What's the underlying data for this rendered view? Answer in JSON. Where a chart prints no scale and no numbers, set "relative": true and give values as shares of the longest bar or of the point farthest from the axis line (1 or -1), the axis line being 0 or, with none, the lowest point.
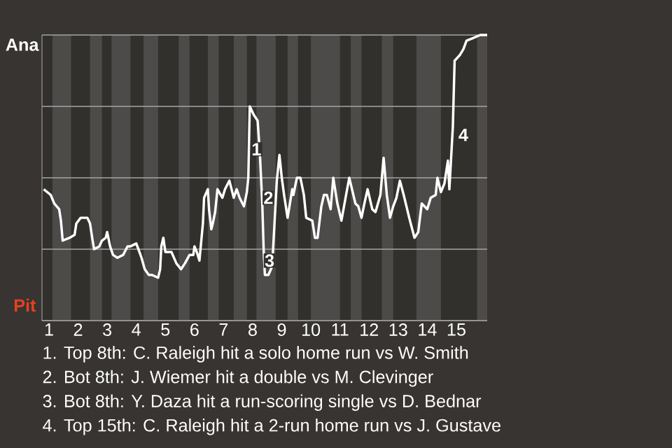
{
  "chart_data": {
    "type": "line",
    "relative": true,
    "x": [
      0.82,
      1.06,
      1.18,
      1.35,
      1.41,
      1.47,
      1.71,
      1.88,
      1.94,
      2.09,
      2.32,
      2.41,
      2.5,
      2.55,
      2.73,
      2.82,
      2.95,
      3.0,
      3.1,
      3.2,
      3.35,
      3.55,
      3.7,
      3.8,
      4.0,
      4.11,
      4.18,
      4.29,
      4.43,
      4.54,
      4.75,
      4.82,
      4.86,
      4.93,
      5.0,
      5.21,
      5.38,
      5.54,
      5.67,
      5.83,
      5.96,
      6.0,
      6.08,
      6.17,
      6.29,
      6.33,
      6.46,
      6.5,
      6.58,
      6.63,
      6.71,
      6.79,
      6.96,
      7.05,
      7.2,
      7.35,
      7.45,
      7.55,
      7.7,
      7.8,
      7.85,
      7.9,
      8.04,
      8.17,
      8.25,
      8.33,
      8.38,
      8.42,
      8.54,
      8.67,
      8.75,
      8.83,
      8.92,
      9.0,
      9.08,
      9.2,
      9.28,
      9.36,
      9.4,
      9.52,
      9.64,
      9.76,
      9.84,
      10.05,
      10.14,
      10.23,
      10.36,
      10.45,
      10.55,
      10.68,
      10.77,
      10.91,
      11.05,
      11.21,
      11.32,
      11.53,
      11.63,
      11.74,
      11.84,
      11.95,
      12.11,
      12.22,
      12.39,
      12.44,
      12.5,
      12.61,
      12.72,
      12.83,
      12.94,
      13.06,
      13.19,
      13.38,
      13.56,
      13.69,
      13.81,
      14.0,
      14.12,
      14.29,
      14.35,
      14.47,
      14.59,
      14.71,
      14.76,
      14.88,
      14.94,
      15.12,
      15.24,
      15.35,
      15.59,
      15.82,
      16.06
    ],
    "series": [
      {
        "color": "#ffffff",
        "values": [
          0.46,
          0.44,
          0.41,
          0.39,
          0.35,
          0.28,
          0.29,
          0.3,
          0.34,
          0.36,
          0.36,
          0.34,
          0.28,
          0.25,
          0.26,
          0.28,
          0.29,
          0.31,
          0.26,
          0.23,
          0.22,
          0.23,
          0.26,
          0.26,
          0.27,
          0.24,
          0.22,
          0.18,
          0.16,
          0.16,
          0.15,
          0.18,
          0.26,
          0.29,
          0.24,
          0.24,
          0.2,
          0.18,
          0.2,
          0.23,
          0.23,
          0.26,
          0.24,
          0.21,
          0.34,
          0.43,
          0.46,
          0.39,
          0.32,
          0.34,
          0.38,
          0.46,
          0.43,
          0.46,
          0.49,
          0.43,
          0.46,
          0.43,
          0.4,
          0.45,
          0.5,
          0.75,
          0.72,
          0.7,
          0.58,
          0.41,
          0.24,
          0.16,
          0.16,
          0.19,
          0.34,
          0.49,
          0.58,
          0.5,
          0.44,
          0.36,
          0.41,
          0.46,
          0.44,
          0.5,
          0.5,
          0.44,
          0.36,
          0.35,
          0.29,
          0.29,
          0.4,
          0.44,
          0.44,
          0.39,
          0.5,
          0.41,
          0.35,
          0.44,
          0.5,
          0.41,
          0.4,
          0.36,
          0.41,
          0.46,
          0.39,
          0.38,
          0.44,
          0.5,
          0.57,
          0.44,
          0.36,
          0.4,
          0.43,
          0.49,
          0.44,
          0.36,
          0.29,
          0.31,
          0.41,
          0.39,
          0.43,
          0.44,
          0.5,
          0.45,
          0.48,
          0.56,
          0.46,
          0.68,
          0.91,
          0.93,
          0.95,
          0.98,
          0.99,
          1.0,
          1.0
        ]
      }
    ],
    "xlim": [
      0.76,
      16.06
    ],
    "xticks": [
      1,
      2,
      3,
      4,
      5,
      6,
      7,
      8,
      9,
      10,
      11,
      12,
      13,
      14,
      15
    ],
    "grid": "y",
    "bands": [
      {
        "axis": "x",
        "from": 1.12,
        "to": 1.76,
        "color": "#4d4b49"
      },
      {
        "axis": "x",
        "from": 2.41,
        "to": 2.82,
        "color": "#4d4b49"
      },
      {
        "axis": "x",
        "from": 3.15,
        "to": 3.8,
        "color": "#4d4b49"
      },
      {
        "axis": "x",
        "from": 4.25,
        "to": 4.75,
        "color": "#4d4b49"
      },
      {
        "axis": "x",
        "from": 5.46,
        "to": 5.83,
        "color": "#4d4b49"
      },
      {
        "axis": "x",
        "from": 6.46,
        "to": 6.83,
        "color": "#4d4b49"
      },
      {
        "axis": "x",
        "from": 7.35,
        "to": 7.8,
        "color": "#4d4b49"
      },
      {
        "axis": "x",
        "from": 8.13,
        "to": 8.79,
        "color": "#4d4b49"
      },
      {
        "axis": "x",
        "from": 9.2,
        "to": 9.56,
        "color": "#4d4b49"
      },
      {
        "axis": "x",
        "from": 10.0,
        "to": 11.0,
        "color": "#4d4b49"
      },
      {
        "axis": "x",
        "from": 11.37,
        "to": 11.74,
        "color": "#4d4b49"
      },
      {
        "axis": "x",
        "from": 12.44,
        "to": 12.83,
        "color": "#4d4b49"
      },
      {
        "axis": "x",
        "from": 13.63,
        "to": 14.47,
        "color": "#4d4b49"
      },
      {
        "axis": "x",
        "from": 15.71,
        "to": 16.06,
        "color": "#4d4b49"
      }
    ],
    "annotations": [
      "Ana",
      "Pit",
      {
        "text": "1",
        "x": 8.13,
        "y": 0.6
      },
      {
        "text": "2",
        "x": 8.54,
        "y": 0.43
      },
      {
        "text": "3",
        "x": 8.58,
        "y": 0.21
      },
      {
        "text": "4",
        "x": 15.24,
        "y": 0.65
      },
      "1. Top 8th: C. Raleigh hit a solo home run vs W. Smith",
      "2. Bot 8th: J. Wiemer hit a double vs M. Clevinger",
      "3. Bot 8th: Y. Daza hit a run-scoring single vs D. Bednar",
      "4. Top 15th: C. Raleigh hit a 2-run home run vs J. Gustave"
    ]
  }
}
